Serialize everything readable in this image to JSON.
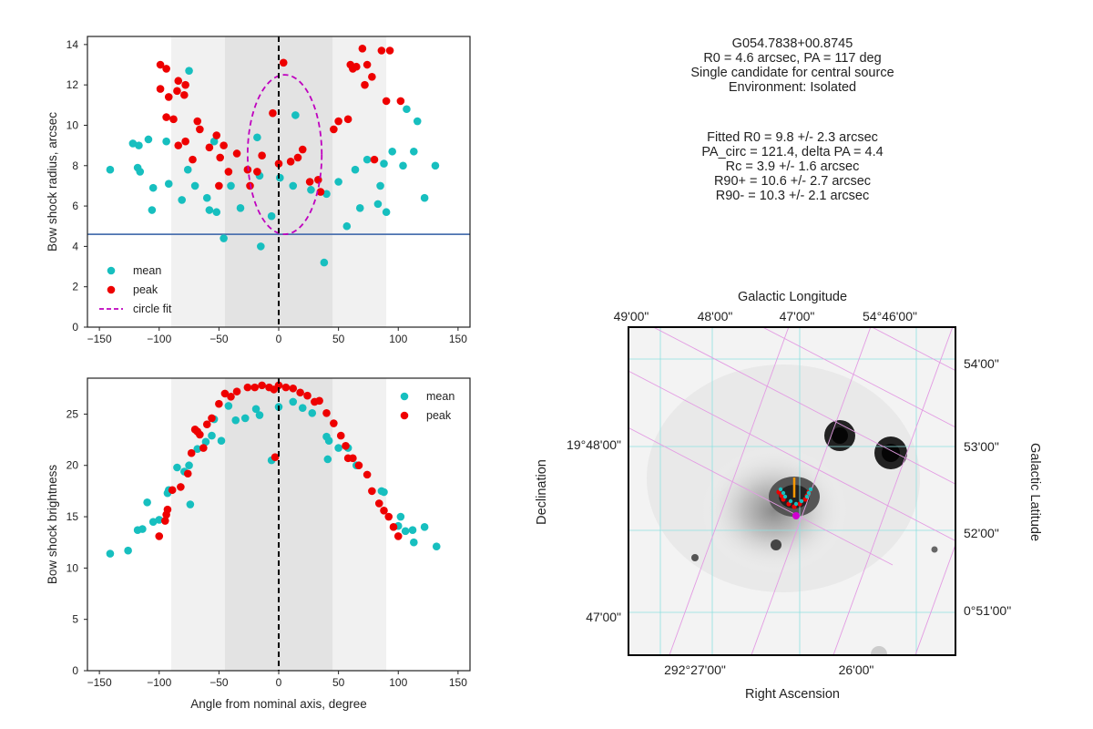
{
  "info": {
    "header": [
      "G054.7838+00.8745",
      "R0 = 4.6 arcsec, PA = 117 deg",
      "Single candidate for central source",
      "Environment: Isolated"
    ],
    "fit": [
      "Fitted R0 = 9.8 +/- 2.3 arcsec",
      "PA_circ = 121.4, delta PA = 4.4",
      "Rc = 3.9 +/- 1.6 arcsec",
      "R90+ = 10.6 +/- 2.7 arcsec",
      "R90- = 10.3 +/- 2.1 arcsec"
    ]
  },
  "colors": {
    "mean": "#17bfbf",
    "peak": "#ee0000",
    "circle_fit": "#bf00bf",
    "r0_line": "#4c72b0",
    "shade_outer": "#f1f1f1",
    "shade_inner": "#e3e3e3"
  },
  "chart_data": [
    {
      "type": "scatter",
      "name": "radius-panel",
      "xlabel": "",
      "ylabel": "Bow shock radius, arcsec",
      "xlim": [
        -160,
        160
      ],
      "ylim": [
        0,
        14.4
      ],
      "xticks": [
        -150,
        -100,
        -50,
        0,
        50,
        100,
        150
      ],
      "yticks": [
        0,
        2,
        4,
        6,
        8,
        10,
        12,
        14
      ],
      "xtick_labels": [
        "−150",
        "−100",
        "−50",
        "0",
        "50",
        "100",
        "150"
      ],
      "ytick_labels": [
        "0",
        "2",
        "4",
        "6",
        "8",
        "10",
        "12",
        "14"
      ],
      "shaded_outer": [
        -90,
        90
      ],
      "shaded_inner": [
        -45,
        45
      ],
      "hline": 4.6,
      "vline": 0,
      "legend": {
        "position": "lower-left",
        "entries": [
          "mean",
          "peak",
          "circle fit"
        ]
      },
      "series": [
        {
          "name": "mean",
          "points": [
            [
              -141,
              7.8
            ],
            [
              -122,
              9.1
            ],
            [
              -118,
              7.9
            ],
            [
              -116,
              7.7
            ],
            [
              -117,
              9.0
            ],
            [
              -109,
              9.3
            ],
            [
              -106,
              5.8
            ],
            [
              -105,
              6.9
            ],
            [
              -92,
              7.1
            ],
            [
              -94,
              9.2
            ],
            [
              -81,
              6.3
            ],
            [
              -76,
              7.8
            ],
            [
              -75,
              12.7
            ],
            [
              -70,
              7.0
            ],
            [
              -60,
              6.4
            ],
            [
              -58,
              5.8
            ],
            [
              -54,
              9.2
            ],
            [
              -52,
              5.7
            ],
            [
              -46,
              4.4
            ],
            [
              -40,
              7.0
            ],
            [
              -32,
              5.9
            ],
            [
              -18,
              9.4
            ],
            [
              -16,
              7.5
            ],
            [
              -15,
              4.0
            ],
            [
              -6,
              5.5
            ],
            [
              1,
              7.4
            ],
            [
              12,
              7.0
            ],
            [
              14,
              10.5
            ],
            [
              27,
              6.8
            ],
            [
              38,
              3.2
            ],
            [
              40,
              6.6
            ],
            [
              50,
              7.2
            ],
            [
              57,
              5.0
            ],
            [
              64,
              7.8
            ],
            [
              68,
              5.9
            ],
            [
              74,
              8.3
            ],
            [
              83,
              6.1
            ],
            [
              85,
              7.0
            ],
            [
              90,
              5.7
            ],
            [
              107,
              10.8
            ],
            [
              104,
              8.0
            ],
            [
              95,
              8.7
            ],
            [
              88,
              8.1
            ],
            [
              113,
              8.7
            ],
            [
              116,
              10.2
            ],
            [
              122,
              6.4
            ],
            [
              131,
              8.0
            ]
          ]
        },
        {
          "name": "peak",
          "points": [
            [
              -99,
              13.0
            ],
            [
              -94,
              12.8
            ],
            [
              -85,
              11.7
            ],
            [
              -84,
              12.2
            ],
            [
              -79,
              11.5
            ],
            [
              -78,
              12.0
            ],
            [
              -99,
              11.8
            ],
            [
              -94,
              10.4
            ],
            [
              -92,
              11.4
            ],
            [
              -88,
              10.3
            ],
            [
              -84,
              9.0
            ],
            [
              -78,
              9.2
            ],
            [
              -72,
              8.3
            ],
            [
              -66,
              9.8
            ],
            [
              -68,
              10.2
            ],
            [
              -58,
              8.9
            ],
            [
              -52,
              9.5
            ],
            [
              -49,
              8.4
            ],
            [
              -50,
              7.0
            ],
            [
              -46,
              9.0
            ],
            [
              -42,
              7.7
            ],
            [
              -35,
              8.6
            ],
            [
              -26,
              7.8
            ],
            [
              -24,
              7.0
            ],
            [
              -18,
              7.7
            ],
            [
              -14,
              8.5
            ],
            [
              -5,
              10.6
            ],
            [
              0,
              8.1
            ],
            [
              4,
              13.1
            ],
            [
              10,
              8.2
            ],
            [
              20,
              8.8
            ],
            [
              16,
              8.4
            ],
            [
              26,
              7.2
            ],
            [
              33,
              7.3
            ],
            [
              35,
              6.7
            ],
            [
              46,
              9.8
            ],
            [
              50,
              10.2
            ],
            [
              60,
              13.0
            ],
            [
              58,
              10.3
            ],
            [
              70,
              13.8
            ],
            [
              74,
              13.0
            ],
            [
              62,
              12.8
            ],
            [
              65,
              12.9
            ],
            [
              72,
              12.0
            ],
            [
              78,
              12.4
            ],
            [
              80,
              8.3
            ],
            [
              86,
              13.7
            ],
            [
              90,
              11.2
            ],
            [
              93,
              13.7
            ],
            [
              102,
              11.2
            ]
          ]
        }
      ],
      "circle_fit": {
        "center_x": 5,
        "center_y": 8.55,
        "half_width_x": 31,
        "half_height_y": 3.95
      }
    },
    {
      "type": "scatter",
      "name": "brightness-panel",
      "xlabel": "Angle from nominal axis, degree",
      "ylabel": "Bow shock brightness",
      "xlim": [
        -160,
        160
      ],
      "ylim": [
        0,
        28.5
      ],
      "xticks": [
        -150,
        -100,
        -50,
        0,
        50,
        100,
        150
      ],
      "yticks": [
        0,
        5,
        10,
        15,
        20,
        25
      ],
      "xtick_labels": [
        "−150",
        "−100",
        "−50",
        "0",
        "50",
        "100",
        "150"
      ],
      "ytick_labels": [
        "0",
        "5",
        "10",
        "15",
        "20",
        "25"
      ],
      "shaded_outer": [
        -90,
        90
      ],
      "shaded_inner": [
        -45,
        45
      ],
      "vline": 0,
      "legend": {
        "position": "top-right",
        "entries": [
          "mean",
          "peak"
        ]
      },
      "series": [
        {
          "name": "mean",
          "points": [
            [
              -141,
              11.4
            ],
            [
              -126,
              11.7
            ],
            [
              -118,
              13.7
            ],
            [
              -114,
              13.8
            ],
            [
              -110,
              16.4
            ],
            [
              -105,
              14.5
            ],
            [
              -100,
              14.7
            ],
            [
              -93,
              17.3
            ],
            [
              -92,
              17.6
            ],
            [
              -85,
              19.8
            ],
            [
              -79,
              19.4
            ],
            [
              -75,
              20.0
            ],
            [
              -74,
              16.2
            ],
            [
              -68,
              21.6
            ],
            [
              -61,
              22.3
            ],
            [
              -56,
              22.9
            ],
            [
              -54,
              24.5
            ],
            [
              -48,
              22.4
            ],
            [
              -42,
              25.8
            ],
            [
              -36,
              24.4
            ],
            [
              -28,
              24.6
            ],
            [
              -19,
              25.5
            ],
            [
              -16,
              24.9
            ],
            [
              -6,
              20.5
            ],
            [
              0,
              25.7
            ],
            [
              12,
              26.2
            ],
            [
              20,
              25.6
            ],
            [
              28,
              25.1
            ],
            [
              40,
              22.8
            ],
            [
              41,
              20.6
            ],
            [
              42,
              22.4
            ],
            [
              50,
              21.7
            ],
            [
              58,
              21.7
            ],
            [
              65,
              20.0
            ],
            [
              86,
              17.5
            ],
            [
              88,
              17.4
            ],
            [
              100,
              14.1
            ],
            [
              102,
              15.0
            ],
            [
              106,
              13.6
            ],
            [
              112,
              13.7
            ],
            [
              113,
              12.5
            ],
            [
              122,
              14.0
            ],
            [
              132,
              12.1
            ]
          ]
        },
        {
          "name": "peak",
          "points": [
            [
              -100,
              13.1
            ],
            [
              -95,
              14.6
            ],
            [
              -94,
              15.2
            ],
            [
              -93,
              15.7
            ],
            [
              -89,
              17.6
            ],
            [
              -82,
              17.9
            ],
            [
              -76,
              19.2
            ],
            [
              -73,
              21.2
            ],
            [
              -70,
              23.5
            ],
            [
              -68,
              23.3
            ],
            [
              -66,
              23.0
            ],
            [
              -63,
              21.7
            ],
            [
              -60,
              24.0
            ],
            [
              -56,
              24.6
            ],
            [
              -50,
              26.0
            ],
            [
              -45,
              27.0
            ],
            [
              -40,
              26.7
            ],
            [
              -35,
              27.2
            ],
            [
              -26,
              27.6
            ],
            [
              -20,
              27.6
            ],
            [
              -14,
              27.8
            ],
            [
              -8,
              27.6
            ],
            [
              -4,
              27.4
            ],
            [
              0,
              27.8
            ],
            [
              6,
              27.6
            ],
            [
              12,
              27.5
            ],
            [
              18,
              27.1
            ],
            [
              24,
              26.8
            ],
            [
              30,
              26.2
            ],
            [
              34,
              26.3
            ],
            [
              40,
              25.1
            ],
            [
              46,
              24.1
            ],
            [
              52,
              22.9
            ],
            [
              56,
              21.9
            ],
            [
              58,
              20.7
            ],
            [
              62,
              20.7
            ],
            [
              67,
              20.0
            ],
            [
              74,
              19.1
            ],
            [
              78,
              17.5
            ],
            [
              84,
              16.3
            ],
            [
              88,
              15.6
            ],
            [
              92,
              15.0
            ],
            [
              96,
              14.0
            ],
            [
              100,
              13.1
            ],
            [
              -3,
              20.8
            ]
          ]
        }
      ]
    }
  ],
  "sky_image": {
    "top_axis_title": "Galactic Longitude",
    "top_ticks": [
      "49'00\"",
      "48'00\"",
      "47'00\"",
      "54°46'00\""
    ],
    "right_axis_title": "Galactic Latitude",
    "right_ticks": [
      "54'00\"",
      "53'00\"",
      "52'00\"",
      "0°51'00\""
    ],
    "left_axis_title": "Declination",
    "left_ticks": [
      "19°48'00\"",
      "47'00\""
    ],
    "bottom_axis_title": "Right Ascension",
    "bottom_ticks": [
      "292°27'00\"",
      "26'00\""
    ]
  }
}
